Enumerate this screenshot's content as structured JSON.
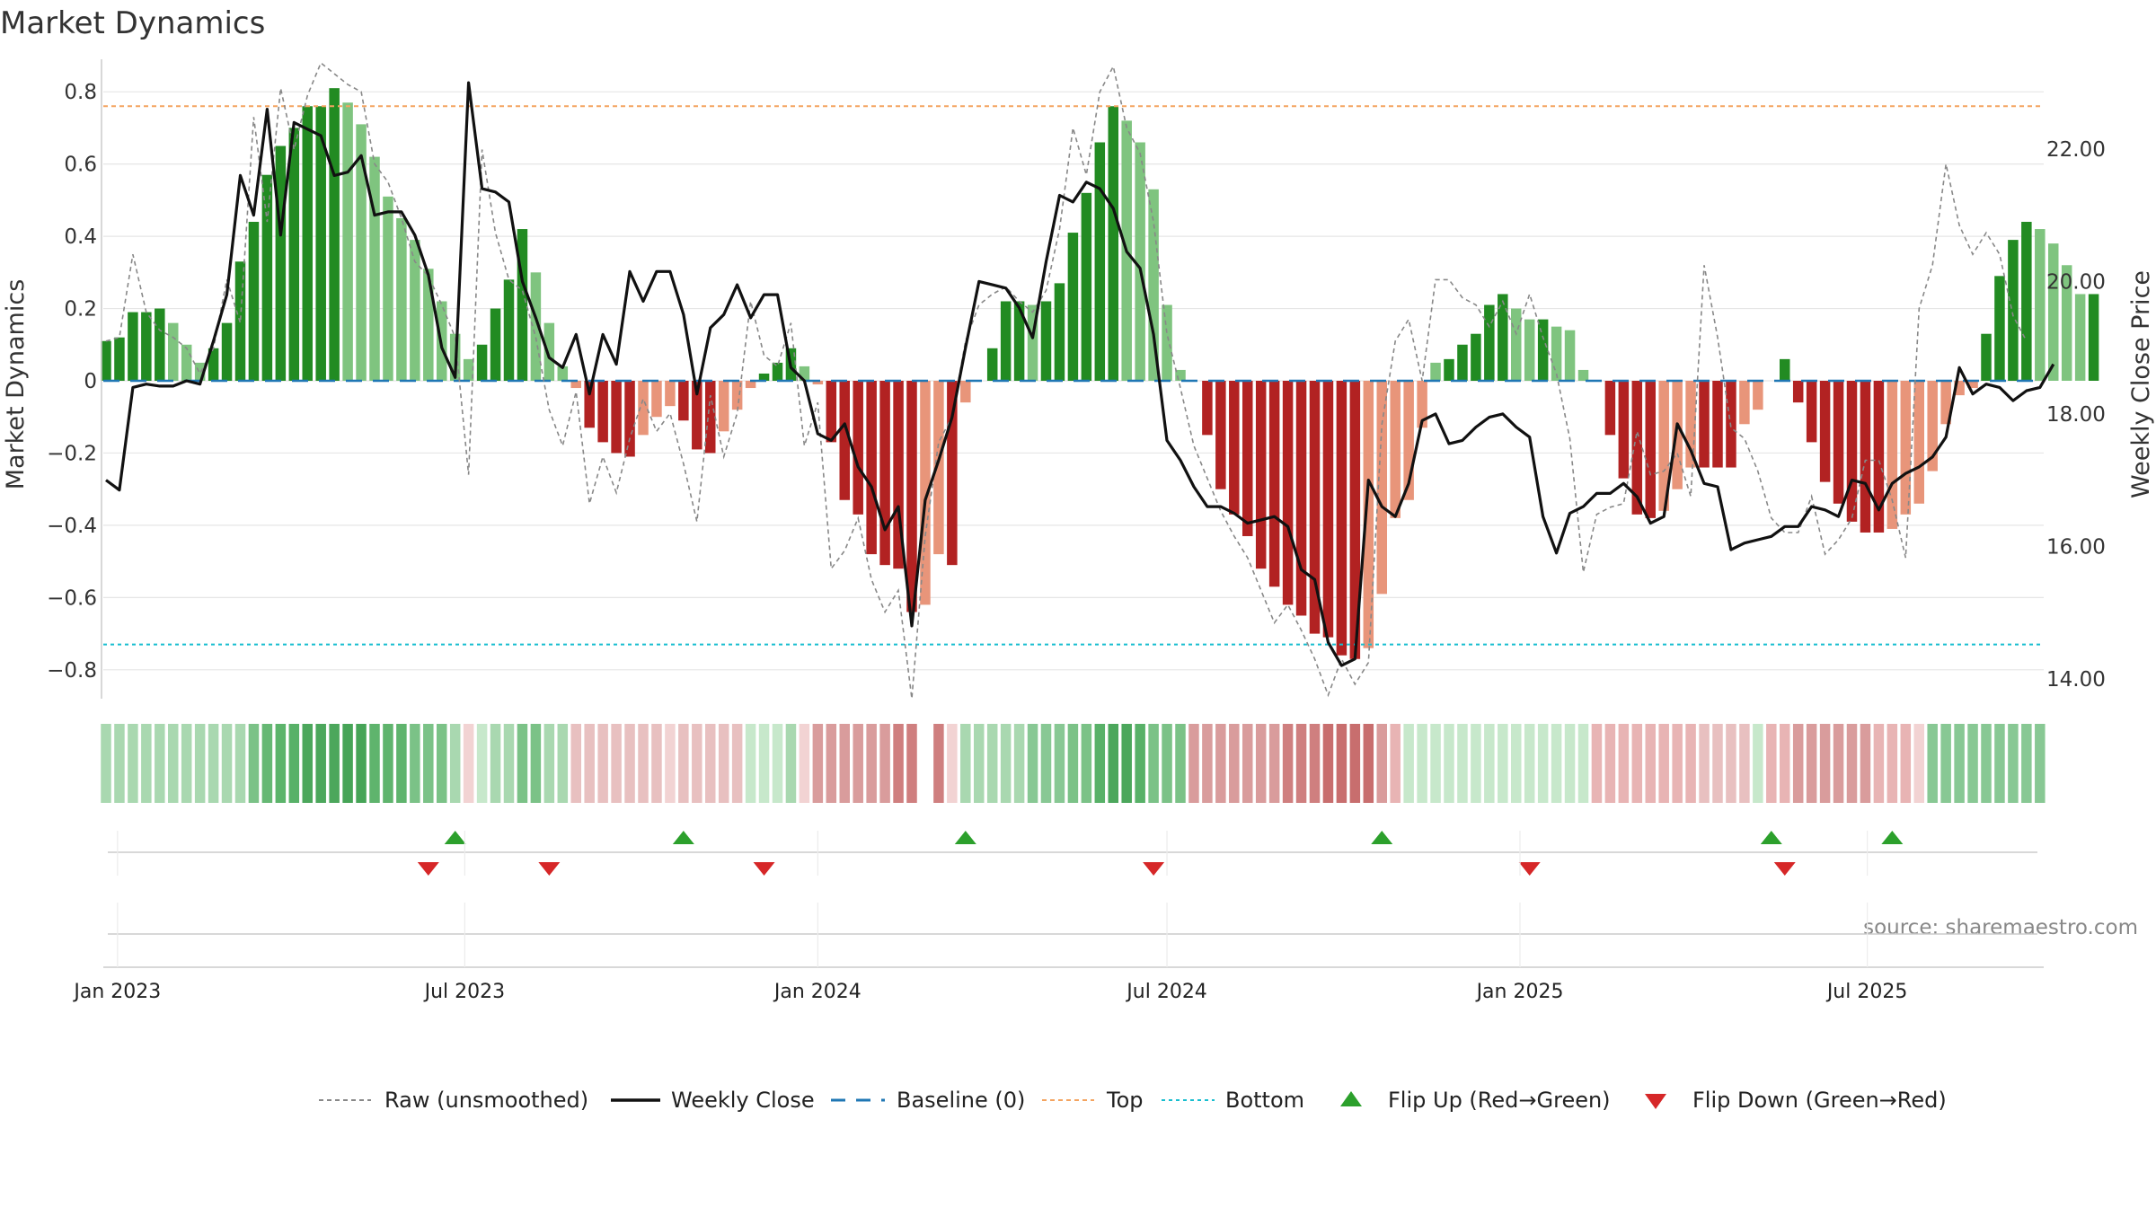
{
  "chart_data": {
    "type": "bar",
    "title": "Market Dynamics",
    "ylabel_left": "Market Dynamics",
    "ylabel_right": "Weekly Close Price",
    "source": "source: sharemaestro.com",
    "left_axis": {
      "range": [
        -0.88,
        0.88
      ],
      "ticks": [
        0.8,
        0.6,
        0.4,
        0.2,
        0,
        -0.2,
        -0.4,
        -0.6,
        -0.8
      ],
      "tick_labels": [
        "0.8",
        "0.6",
        "0.4",
        "0.2",
        "0",
        "−0.2",
        "−0.4",
        "−0.6",
        "−0.8"
      ]
    },
    "right_axis": {
      "range": [
        13.7,
        23.3
      ],
      "ticks": [
        22,
        20,
        18,
        16,
        14
      ],
      "tick_labels": [
        "22.00",
        "20.00",
        "18.00",
        "16.00",
        "14.00"
      ]
    },
    "x_axis": {
      "start": "2022-12-26",
      "end": "2025-09-01",
      "ticks": [
        "2023-01-01",
        "2023-07-01",
        "2024-01-01",
        "2024-07-01",
        "2025-01-01",
        "2025-07-01"
      ],
      "tick_labels": [
        "Jan 2023",
        "Jul 2023",
        "Jan 2024",
        "Jul 2024",
        "Jan 2025",
        "Jul 2025"
      ]
    },
    "reference_lines": {
      "baseline": 0,
      "top": 0.76,
      "bottom": -0.73
    },
    "legend": [
      "Raw (unsmoothed)",
      "Weekly Close",
      "Baseline (0)",
      "Top",
      "Bottom",
      "Flip Up (Red→Green)",
      "Flip Down (Green→Red)"
    ],
    "legend_placement": "bottom-center",
    "grid": true,
    "colors": {
      "strong_green": "#228b22",
      "light_green": "#7fc47f",
      "strong_red": "#b22222",
      "light_red": "#e8957a",
      "raw": "#888888",
      "close": "#111111",
      "baseline": "#1f77b4",
      "top": "#f4a460",
      "bottom": "#17becf",
      "flip_up": "#2ca02c",
      "flip_down": "#d62728"
    },
    "dynamics": [
      0.11,
      0.12,
      0.19,
      0.19,
      0.2,
      0.16,
      0.1,
      0.05,
      0.09,
      0.16,
      0.33,
      0.44,
      0.57,
      0.65,
      0.7,
      0.76,
      0.76,
      0.81,
      0.77,
      0.71,
      0.62,
      0.51,
      0.45,
      0.39,
      0.31,
      0.22,
      0.13,
      0.06,
      0.1,
      0.2,
      0.28,
      0.42,
      0.3,
      0.16,
      0.04,
      -0.02,
      -0.13,
      -0.17,
      -0.2,
      -0.21,
      -0.15,
      -0.1,
      -0.07,
      -0.11,
      -0.19,
      -0.2,
      -0.14,
      -0.08,
      -0.02,
      0.02,
      0.05,
      0.09,
      0.04,
      -0.01,
      -0.17,
      -0.33,
      -0.37,
      -0.48,
      -0.51,
      -0.52,
      -0.64,
      -0.62,
      -0.48,
      -0.51,
      -0.06,
      0.0,
      0.09,
      0.22,
      0.22,
      0.21,
      0.22,
      0.27,
      0.41,
      0.52,
      0.66,
      0.76,
      0.72,
      0.66,
      0.53,
      0.21,
      0.03,
      0.0,
      -0.15,
      -0.3,
      -0.37,
      -0.43,
      -0.52,
      -0.57,
      -0.62,
      -0.65,
      -0.7,
      -0.71,
      -0.76,
      -0.77,
      -0.74,
      -0.59,
      -0.38,
      -0.33,
      -0.13,
      0.05,
      0.06,
      0.1,
      0.13,
      0.21,
      0.24,
      0.2,
      0.17,
      0.17,
      0.15,
      0.14,
      0.03,
      0.0,
      -0.15,
      -0.27,
      -0.37,
      -0.38,
      -0.36,
      -0.3,
      -0.24,
      -0.24,
      -0.24,
      -0.24,
      -0.12,
      -0.08,
      0.0,
      0.06,
      -0.06,
      -0.17,
      -0.28,
      -0.34,
      -0.39,
      -0.42,
      -0.42,
      -0.41,
      -0.37,
      -0.34,
      -0.25,
      -0.12,
      -0.04,
      -0.02,
      0.13,
      0.29,
      0.39,
      0.44,
      0.42,
      0.38,
      0.32,
      0.24,
      0.24
    ],
    "raw": [
      0.11,
      0.12,
      0.35,
      0.19,
      0.14,
      0.12,
      0.09,
      0.02,
      0.09,
      0.28,
      0.16,
      0.73,
      0.44,
      0.81,
      0.64,
      0.79,
      0.88,
      0.85,
      0.82,
      0.8,
      0.6,
      0.55,
      0.45,
      0.33,
      0.29,
      0.21,
      0.12,
      -0.26,
      0.64,
      0.41,
      0.28,
      0.25,
      0.12,
      -0.08,
      -0.18,
      -0.03,
      -0.34,
      -0.21,
      -0.31,
      -0.16,
      -0.05,
      -0.14,
      -0.09,
      -0.23,
      -0.39,
      -0.04,
      -0.21,
      -0.09,
      0.22,
      0.07,
      0.04,
      0.16,
      -0.18,
      -0.06,
      -0.52,
      -0.47,
      -0.38,
      -0.55,
      -0.64,
      -0.58,
      -0.88,
      -0.43,
      -0.17,
      -0.1,
      0.11,
      0.21,
      0.24,
      0.26,
      0.22,
      0.19,
      0.25,
      0.42,
      0.7,
      0.57,
      0.8,
      0.87,
      0.7,
      0.63,
      0.44,
      0.13,
      -0.02,
      -0.18,
      -0.27,
      -0.36,
      -0.43,
      -0.49,
      -0.58,
      -0.67,
      -0.62,
      -0.69,
      -0.77,
      -0.87,
      -0.77,
      -0.84,
      -0.78,
      -0.12,
      0.11,
      0.17,
      0.0,
      0.28,
      0.28,
      0.23,
      0.21,
      0.15,
      0.22,
      0.13,
      0.24,
      0.12,
      0.02,
      -0.16,
      -0.53,
      -0.37,
      -0.35,
      -0.34,
      -0.14,
      -0.26,
      -0.25,
      -0.2,
      -0.32,
      0.32,
      0.12,
      -0.13,
      -0.16,
      -0.25,
      -0.38,
      -0.42,
      -0.42,
      -0.32,
      -0.48,
      -0.44,
      -0.38,
      -0.22,
      -0.22,
      -0.33,
      -0.49,
      0.2,
      0.32,
      0.6,
      0.43,
      0.35,
      0.41,
      0.35,
      0.18,
      0.11
    ]
  },
  "strip": {
    "colors": [
      "#a9d8b0",
      "#a9d8b0",
      "#a9d8b0",
      "#a9d8b0",
      "#a9d8b0",
      "#a9d8b0",
      "#a9d8b0",
      "#a9d8b0",
      "#a9d8b0",
      "#a9d8b0",
      "#a9d8b0",
      "#7bc287",
      "#66b874",
      "#5cb46b",
      "#58b168",
      "#4ca75c",
      "#4ca75c",
      "#4ca75c",
      "#46a457",
      "#46a457",
      "#5fb46d",
      "#5fb46d",
      "#5fb46d",
      "#7bc287",
      "#7bc287",
      "#7bc287",
      "#a9d8b0",
      "#f2d3d3",
      "#c7e8cb",
      "#a9d8b0",
      "#a9d8b0",
      "#7bc287",
      "#7bc287",
      "#a9d8b0",
      "#a9d8b0",
      "#e8c0c0",
      "#e8c0c0",
      "#e8c0c0",
      "#e8c0c0",
      "#e8c0c0",
      "#e8c0c0",
      "#e8c0c0",
      "#f2d3d3",
      "#e8c0c0",
      "#e8c0c0",
      "#e8c0c0",
      "#e8c0c0",
      "#e8c0c0",
      "#c7e8cb",
      "#c7e8cb",
      "#c7e8cb",
      "#a9d8b0",
      "#f2d3d3",
      "#d99c9c",
      "#d99c9c",
      "#d99c9c",
      "#d99c9c",
      "#d99c9c",
      "#d99c9c",
      "#cf7f7f",
      "#cf7f7f",
      "#ffffff",
      "#cf7f7f",
      "#f2d3d3",
      "#a9d8b0",
      "#a9d8b0",
      "#a9d8b0",
      "#a9d8b0",
      "#a9d8b0",
      "#88c894",
      "#88c894",
      "#88c894",
      "#7bc287",
      "#7bc287",
      "#58b168",
      "#4ca75c",
      "#4ca75c",
      "#58b168",
      "#7bc287",
      "#7bc287",
      "#7bc287",
      "#d99c9c",
      "#d99c9c",
      "#d99c9c",
      "#d99c9c",
      "#d99c9c",
      "#d99c9c",
      "#d99c9c",
      "#cf7f7f",
      "#cf7f7f",
      "#cf7f7f",
      "#c86e6e",
      "#c86e6e",
      "#c86e6e",
      "#c86e6e",
      "#d99c9c",
      "#e8b4b4",
      "#c7e8cb",
      "#c7e8cb",
      "#c7e8cb",
      "#c7e8cb",
      "#c7e8cb",
      "#c7e8cb",
      "#c7e8cb",
      "#c7e8cb",
      "#c7e8cb",
      "#c7e8cb",
      "#c7e8cb",
      "#c7e8cb",
      "#c7e8cb",
      "#c7e8cb",
      "#e8b4b4",
      "#e8b4b4",
      "#e8b4b4",
      "#e8b4b4",
      "#e8b4b4",
      "#e8b4b4",
      "#e8b4b4",
      "#e8b4b4",
      "#e8c0c0",
      "#e8c0c0",
      "#e8c0c0",
      "#e8c0c0",
      "#c7e8cb",
      "#e8b4b4",
      "#e8b4b4",
      "#d99c9c",
      "#d99c9c",
      "#d99c9c",
      "#d99c9c",
      "#d99c9c",
      "#d99c9c",
      "#e8b4b4",
      "#e8b4b4",
      "#e8b4b4",
      "#f2d3d3",
      "#88c894",
      "#88c894",
      "#88c894",
      "#88c894",
      "#88c894",
      "#88c894",
      "#88c894",
      "#88c894",
      "#88c894"
    ]
  },
  "flips": {
    "up": [
      "2023-06-26",
      "2023-10-23",
      "2024-03-18",
      "2024-10-21",
      "2025-05-12",
      "2025-07-14"
    ],
    "down": [
      "2023-06-12",
      "2023-08-14",
      "2023-12-04",
      "2024-06-24",
      "2025-01-06",
      "2025-05-19"
    ]
  }
}
